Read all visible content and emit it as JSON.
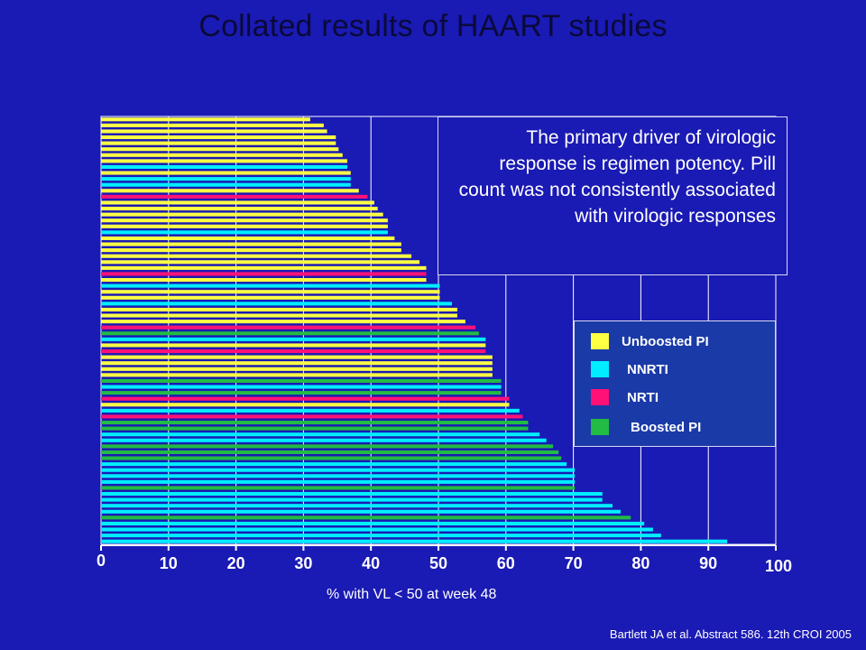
{
  "title": "Collated results of HAART studies",
  "callout": {
    "text": "The primary driver of virologic response is regimen potency. Pill count was not consistently associated with virologic responses"
  },
  "citation": "Bartlett JA et al. Abstract 586. 12th CROI 2005",
  "chart_data": {
    "type": "bar",
    "orientation": "horizontal",
    "title": "",
    "xlabel": "% with VL < 50 at week 48",
    "ylabel": "",
    "xlim": [
      0,
      100
    ],
    "xticks": [
      "0",
      "10",
      "20",
      "30",
      "40",
      "50",
      "60",
      "70",
      "80",
      "90",
      "100"
    ],
    "grid": true,
    "legend_position": "right",
    "legend": [
      {
        "name": "Unboosted PI",
        "key": "U",
        "color": "#ffff44"
      },
      {
        "name": "NNRTI",
        "key": "N",
        "color": "#00eeff"
      },
      {
        "name": "NRTI",
        "key": "R",
        "color": "#ff1177"
      },
      {
        "name": "Boosted PI",
        "key": "B",
        "color": "#22bb44"
      }
    ],
    "bars": [
      {
        "v": 31,
        "c": "U"
      },
      {
        "v": 33,
        "c": "U"
      },
      {
        "v": 33.5,
        "c": "U"
      },
      {
        "v": 34.8,
        "c": "U"
      },
      {
        "v": 34.8,
        "c": "U"
      },
      {
        "v": 35.2,
        "c": "U"
      },
      {
        "v": 35.8,
        "c": "U"
      },
      {
        "v": 36.5,
        "c": "U"
      },
      {
        "v": 36.5,
        "c": "N"
      },
      {
        "v": 37,
        "c": "U"
      },
      {
        "v": 37,
        "c": "N"
      },
      {
        "v": 37,
        "c": "N"
      },
      {
        "v": 38.2,
        "c": "U"
      },
      {
        "v": 39.5,
        "c": "R"
      },
      {
        "v": 40.5,
        "c": "U"
      },
      {
        "v": 41,
        "c": "U"
      },
      {
        "v": 41.8,
        "c": "U"
      },
      {
        "v": 42.5,
        "c": "U"
      },
      {
        "v": 42.5,
        "c": "U"
      },
      {
        "v": 42.5,
        "c": "N"
      },
      {
        "v": 43.5,
        "c": "U"
      },
      {
        "v": 44.5,
        "c": "U"
      },
      {
        "v": 44.5,
        "c": "U"
      },
      {
        "v": 46,
        "c": "U"
      },
      {
        "v": 47.2,
        "c": "U"
      },
      {
        "v": 48.2,
        "c": "U"
      },
      {
        "v": 48.2,
        "c": "R"
      },
      {
        "v": 48.2,
        "c": "U"
      },
      {
        "v": 50.2,
        "c": "N"
      },
      {
        "v": 50.2,
        "c": "U"
      },
      {
        "v": 50.2,
        "c": "U"
      },
      {
        "v": 52,
        "c": "N"
      },
      {
        "v": 52.8,
        "c": "U"
      },
      {
        "v": 52.8,
        "c": "U"
      },
      {
        "v": 54,
        "c": "U"
      },
      {
        "v": 55.5,
        "c": "R"
      },
      {
        "v": 56,
        "c": "B"
      },
      {
        "v": 57,
        "c": "N"
      },
      {
        "v": 57,
        "c": "U"
      },
      {
        "v": 57,
        "c": "R"
      },
      {
        "v": 58,
        "c": "U"
      },
      {
        "v": 58,
        "c": "U"
      },
      {
        "v": 58,
        "c": "U"
      },
      {
        "v": 58,
        "c": "U"
      },
      {
        "v": 59.3,
        "c": "B"
      },
      {
        "v": 59.3,
        "c": "N"
      },
      {
        "v": 59.3,
        "c": "B"
      },
      {
        "v": 60.5,
        "c": "R"
      },
      {
        "v": 60.5,
        "c": "U"
      },
      {
        "v": 62,
        "c": "N"
      },
      {
        "v": 62.5,
        "c": "R"
      },
      {
        "v": 63.3,
        "c": "B"
      },
      {
        "v": 63.3,
        "c": "B"
      },
      {
        "v": 65,
        "c": "N"
      },
      {
        "v": 66,
        "c": "N"
      },
      {
        "v": 67,
        "c": "B"
      },
      {
        "v": 67.8,
        "c": "B"
      },
      {
        "v": 68.2,
        "c": "B"
      },
      {
        "v": 69,
        "c": "N"
      },
      {
        "v": 70.2,
        "c": "N"
      },
      {
        "v": 70.2,
        "c": "N"
      },
      {
        "v": 70.2,
        "c": "N"
      },
      {
        "v": 70.2,
        "c": "B"
      },
      {
        "v": 74.3,
        "c": "N"
      },
      {
        "v": 74.3,
        "c": "N"
      },
      {
        "v": 75.8,
        "c": "N"
      },
      {
        "v": 77,
        "c": "N"
      },
      {
        "v": 78.5,
        "c": "B"
      },
      {
        "v": 80.5,
        "c": "N"
      },
      {
        "v": 81.8,
        "c": "N"
      },
      {
        "v": 83,
        "c": "N"
      },
      {
        "v": 92.8,
        "c": "N"
      }
    ]
  }
}
